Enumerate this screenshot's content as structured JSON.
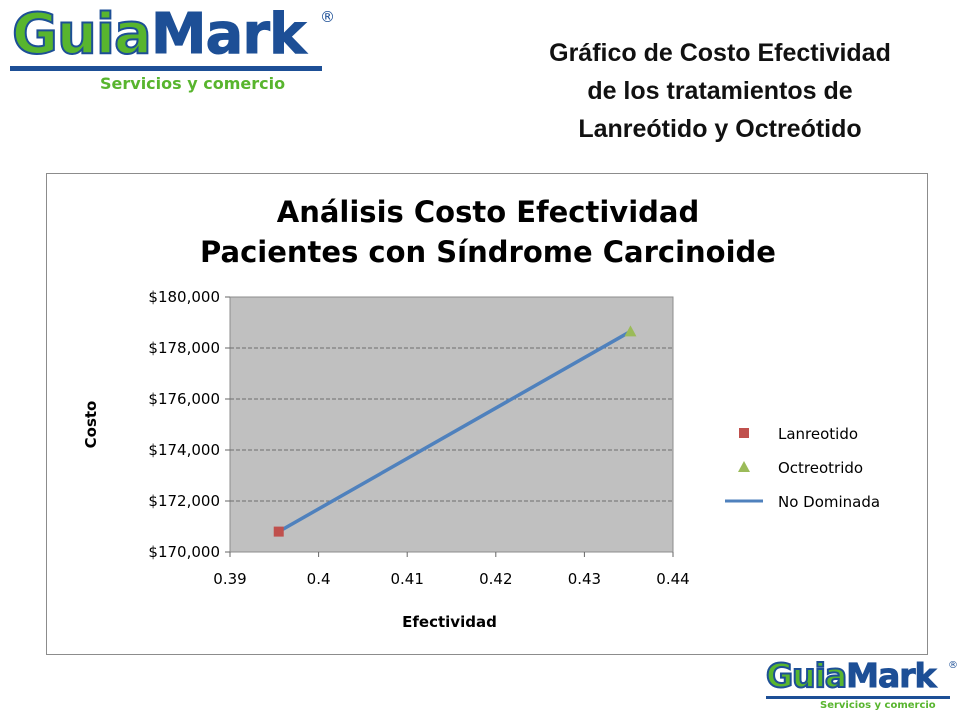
{
  "logo": {
    "name_part1": "Guia",
    "name_part2": "Mark",
    "registered": "®",
    "tagline": "Servicios y comercio"
  },
  "slide_title": "Gráfico de Costo Efectividad\nde los tratamientos de\nLanreótido y Octreótido",
  "chart_data": {
    "type": "scatter",
    "title_lines": [
      "Análisis Costo Efectividad",
      "Pacientes con  Síndrome Carcinoide"
    ],
    "xlabel": "Efectividad",
    "ylabel": "Costo",
    "xlim": [
      0.39,
      0.44
    ],
    "ylim": [
      170000,
      180000
    ],
    "x_ticks": [
      "0.39",
      "0.4",
      "0.41",
      "0.42",
      "0.43",
      "0.44"
    ],
    "y_ticks": [
      "$170,000",
      "$172,000",
      "$174,000",
      "$176,000",
      "$178,000",
      "$180,000"
    ],
    "grid": true,
    "legend_position": "right",
    "series": [
      {
        "name": "Lanreotido",
        "marker": "square",
        "color": "#c0504d",
        "points": [
          {
            "x": 0.3955,
            "y": 170800
          }
        ]
      },
      {
        "name": "Octreotrido",
        "marker": "triangle",
        "color": "#9bbb59",
        "points": [
          {
            "x": 0.4352,
            "y": 178650
          }
        ]
      },
      {
        "name": "No Dominada",
        "marker": "line",
        "color": "#4f81bd",
        "points": [
          {
            "x": 0.3955,
            "y": 170800
          },
          {
            "x": 0.4352,
            "y": 178650
          }
        ]
      }
    ]
  }
}
